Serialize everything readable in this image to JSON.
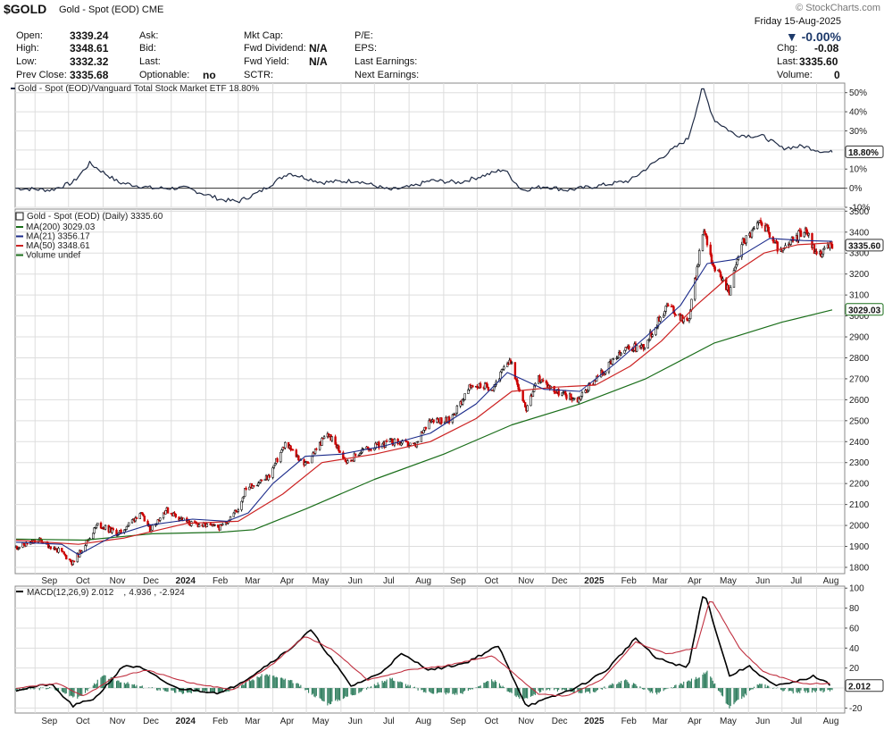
{
  "header": {
    "symbol": "$GOLD",
    "description": "Gold - Spot (EOD) CME",
    "site": "© StockCharts.com",
    "date": "Friday 15-Aug-2025",
    "change_pct": "▼ -0.00%",
    "rows": [
      {
        "l1": "Open:",
        "v1": "3339.24",
        "l2": "Ask:",
        "v2": "",
        "l3": "Mkt Cap:",
        "v3": "",
        "l4": "P/E:",
        "v4": "",
        "l5": "",
        "v5": ""
      },
      {
        "l1": "High:",
        "v1": "3348.61",
        "l2": "Bid:",
        "v2": "",
        "l3": "Fwd Dividend:",
        "v3": "N/A",
        "l4": "EPS:",
        "v4": "",
        "l5": "Chg:",
        "v5": "-0.08"
      },
      {
        "l1": "Low:",
        "v1": "3332.32",
        "l2": "Last:",
        "v2": "",
        "l3": "Fwd Yield:",
        "v3": "N/A",
        "l4": "Last Earnings:",
        "v4": "",
        "l5": "Last:",
        "v5": "3335.60"
      },
      {
        "l1": "Prev Close:",
        "v1": "3335.68",
        "l2": "Optionable:",
        "v2": "no",
        "l3": "SCTR:",
        "v3": "",
        "l4": "Next Earnings:",
        "v4": "",
        "l5": "Volume:",
        "v5": "0"
      }
    ]
  },
  "colors": {
    "price_up": "#111111",
    "price_down": "#cc0000",
    "ma200": "#1a6e1a",
    "ma21": "#1a2a8a",
    "ma50": "#cc2222",
    "ratio": "#1e2a44",
    "macd": "#000000",
    "signal": "#c03040",
    "histogram": "#2a7a5a",
    "grid": "#dddddd"
  },
  "chart_data": [
    {
      "type": "line",
      "title": "Gold - Spot (EOD)/Vanguard Total Stock Market ETF 18.80%",
      "y_ticks": [
        "50%",
        "40%",
        "30%",
        "20%",
        "10%",
        "0%",
        "-10%"
      ],
      "ylim": [
        -10,
        55
      ],
      "last_label": "18.80%",
      "series": [
        {
          "name": "Gold/VTI relative %",
          "x": [
            "2023-08-15",
            "2023-09-15",
            "2023-10-05",
            "2023-10-20",
            "2023-11-15",
            "2023-12-15",
            "2024-01-15",
            "2024-02-15",
            "2024-03-01",
            "2024-03-20",
            "2024-04-15",
            "2024-05-15",
            "2024-06-15",
            "2024-07-15",
            "2024-08-05",
            "2024-08-20",
            "2024-09-15",
            "2024-10-15",
            "2024-10-25",
            "2024-11-10",
            "2024-12-01",
            "2024-12-20",
            "2025-01-15",
            "2025-02-15",
            "2025-03-10",
            "2025-04-08",
            "2025-04-21",
            "2025-05-01",
            "2025-05-20",
            "2025-06-15",
            "2025-07-01",
            "2025-07-20",
            "2025-08-08",
            "2025-08-15"
          ],
          "y": [
            0,
            -1,
            3,
            13,
            3,
            0,
            0,
            -6,
            -7,
            -2,
            8,
            3,
            4,
            -1,
            1,
            4,
            3,
            8,
            10,
            -1,
            1,
            -1,
            1,
            4,
            14,
            26,
            53,
            36,
            28,
            27,
            21,
            22,
            19,
            18.8
          ]
        }
      ]
    },
    {
      "type": "candlestick",
      "title": "Gold - Spot (EOD) (Daily) 3335.60",
      "legend": [
        "MA(200) 3029.03",
        "MA(21) 3356.17",
        "MA(50) 3348.61",
        "Volume undef"
      ],
      "y_ticks": [
        "3500",
        "3400",
        "3300",
        "3200",
        "3100",
        "3000",
        "2900",
        "2800",
        "2700",
        "2600",
        "2500",
        "2400",
        "2300",
        "2200",
        "2100",
        "2000",
        "1900",
        "1800"
      ],
      "ylim": [
        1770,
        3510
      ],
      "last_label": "3335.60",
      "ma200_label": "3029.03",
      "x_labels": [
        "Sep",
        "Oct",
        "Nov",
        "Dec",
        "2024",
        "Feb",
        "Mar",
        "Apr",
        "May",
        "Jun",
        "Jul",
        "Aug",
        "Sep",
        "Oct",
        "Nov",
        "Dec",
        "2025",
        "Feb",
        "Mar",
        "Apr",
        "May",
        "Jun",
        "Jul",
        "Aug"
      ],
      "price_path": {
        "x": [
          "2023-08-15",
          "2023-09-05",
          "2023-09-25",
          "2023-10-05",
          "2023-10-27",
          "2023-11-15",
          "2023-12-04",
          "2023-12-13",
          "2023-12-27",
          "2024-01-17",
          "2024-02-14",
          "2024-03-01",
          "2024-03-08",
          "2024-03-28",
          "2024-04-12",
          "2024-04-30",
          "2024-05-20",
          "2024-06-07",
          "2024-06-20",
          "2024-07-17",
          "2024-08-07",
          "2024-08-20",
          "2024-09-06",
          "2024-09-26",
          "2024-10-15",
          "2024-10-30",
          "2024-11-14",
          "2024-11-25",
          "2024-12-11",
          "2024-12-30",
          "2025-01-15",
          "2025-02-11",
          "2025-02-28",
          "2025-03-20",
          "2025-04-08",
          "2025-04-22",
          "2025-05-01",
          "2025-05-15",
          "2025-05-26",
          "2025-06-13",
          "2025-06-30",
          "2025-07-22",
          "2025-08-01",
          "2025-08-15"
        ],
        "y": [
          1895,
          1930,
          1870,
          1820,
          2005,
          1960,
          2060,
          1980,
          2075,
          2010,
          1990,
          2080,
          2180,
          2230,
          2390,
          2290,
          2440,
          2300,
          2360,
          2400,
          2380,
          2510,
          2500,
          2670,
          2660,
          2790,
          2560,
          2700,
          2640,
          2600,
          2700,
          2840,
          2860,
          3050,
          2970,
          3420,
          3230,
          3120,
          3350,
          3450,
          3300,
          3420,
          3290,
          3335.6
        ]
      },
      "ma21": {
        "x": [
          "2023-08-15",
          "2023-09-25",
          "2023-10-10",
          "2023-11-10",
          "2023-12-10",
          "2024-01-20",
          "2024-02-20",
          "2024-03-10",
          "2024-04-01",
          "2024-04-30",
          "2024-06-01",
          "2024-07-10",
          "2024-08-20",
          "2024-09-30",
          "2024-10-28",
          "2024-11-30",
          "2025-01-01",
          "2025-02-01",
          "2025-03-01",
          "2025-04-01",
          "2025-04-25",
          "2025-05-20",
          "2025-06-20",
          "2025-07-20",
          "2025-08-15"
        ],
        "y": [
          1920,
          1910,
          1860,
          1950,
          2000,
          2030,
          2020,
          2060,
          2200,
          2330,
          2340,
          2380,
          2440,
          2580,
          2730,
          2650,
          2640,
          2770,
          2900,
          3050,
          3250,
          3270,
          3370,
          3360,
          3356.17
        ]
      },
      "ma50": {
        "x": [
          "2023-08-15",
          "2023-10-10",
          "2023-11-20",
          "2024-01-15",
          "2024-03-01",
          "2024-04-10",
          "2024-05-15",
          "2024-07-01",
          "2024-08-20",
          "2024-09-30",
          "2024-11-01",
          "2024-12-10",
          "2025-01-15",
          "2025-02-15",
          "2025-03-15",
          "2025-04-15",
          "2025-05-15",
          "2025-06-15",
          "2025-07-15",
          "2025-08-15"
        ],
        "y": [
          1930,
          1910,
          1940,
          2010,
          2020,
          2150,
          2300,
          2340,
          2400,
          2510,
          2640,
          2660,
          2670,
          2760,
          2880,
          3050,
          3190,
          3300,
          3340,
          3348.61
        ]
      },
      "ma200": {
        "x": [
          "2023-08-15",
          "2023-10-15",
          "2023-12-15",
          "2024-02-15",
          "2024-03-15",
          "2024-05-01",
          "2024-07-01",
          "2024-09-01",
          "2024-11-01",
          "2025-01-01",
          "2025-03-01",
          "2025-05-01",
          "2025-07-01",
          "2025-08-15"
        ],
        "y": [
          1935,
          1930,
          1960,
          1968,
          1980,
          2080,
          2220,
          2340,
          2480,
          2580,
          2700,
          2870,
          2970,
          3029.03
        ]
      }
    },
    {
      "type": "line",
      "title": "MACD(12,26,9) 2.012, 4.936, -2.924",
      "legend_parts": [
        "MACD(12,26,9) 2.012",
        "4.936",
        "-2.924"
      ],
      "y_ticks": [
        "100",
        "80",
        "60",
        "40",
        "20",
        "0",
        "-20"
      ],
      "ylim": [
        -25,
        102
      ],
      "last_label": "2.012",
      "x_labels": [
        "Sep",
        "Oct",
        "Nov",
        "Dec",
        "2024",
        "Feb",
        "Mar",
        "Apr",
        "May",
        "Jun",
        "Jul",
        "Aug",
        "Sep",
        "Oct",
        "Nov",
        "Dec",
        "2025",
        "Feb",
        "Mar",
        "Apr",
        "May",
        "Jun",
        "Jul",
        "Aug"
      ],
      "series": [
        {
          "name": "MACD",
          "x": [
            "2023-08-15",
            "2023-09-15",
            "2023-10-05",
            "2023-10-25",
            "2023-11-20",
            "2023-12-05",
            "2024-01-05",
            "2024-02-15",
            "2024-03-10",
            "2024-04-15",
            "2024-05-05",
            "2024-06-10",
            "2024-07-05",
            "2024-07-25",
            "2024-08-20",
            "2024-09-20",
            "2024-10-20",
            "2024-11-14",
            "2024-12-05",
            "2025-01-01",
            "2025-01-25",
            "2025-02-20",
            "2025-03-10",
            "2025-04-08",
            "2025-04-22",
            "2025-05-15",
            "2025-06-01",
            "2025-06-25",
            "2025-07-10",
            "2025-07-30",
            "2025-08-15"
          ],
          "y": [
            -2,
            4,
            -18,
            -10,
            23,
            20,
            0,
            -5,
            10,
            38,
            58,
            2,
            14,
            34,
            18,
            25,
            42,
            -18,
            -10,
            2,
            18,
            50,
            30,
            20,
            98,
            12,
            22,
            2,
            5,
            12,
            2.012
          ]
        },
        {
          "name": "Signal",
          "x": [
            "2023-08-15",
            "2023-09-20",
            "2023-10-15",
            "2023-11-10",
            "2023-12-10",
            "2024-01-15",
            "2024-02-25",
            "2024-04-01",
            "2024-04-30",
            "2024-05-25",
            "2024-06-25",
            "2024-07-30",
            "2024-09-01",
            "2024-10-15",
            "2024-11-25",
            "2024-12-20",
            "2025-01-20",
            "2025-02-20",
            "2025-03-20",
            "2025-04-15",
            "2025-04-28",
            "2025-05-25",
            "2025-06-15",
            "2025-07-20",
            "2025-08-15"
          ],
          "y": [
            0,
            5,
            -8,
            10,
            18,
            6,
            -2,
            24,
            52,
            38,
            8,
            18,
            22,
            32,
            -6,
            -8,
            8,
            46,
            34,
            40,
            90,
            38,
            16,
            4,
            4.936
          ]
        }
      ],
      "histogram": {
        "x": [
          "2023-08-15",
          "2023-09-15",
          "2023-10-10",
          "2023-11-01",
          "2023-12-01",
          "2024-01-10",
          "2024-02-20",
          "2024-03-25",
          "2024-04-20",
          "2024-05-20",
          "2024-06-15",
          "2024-07-15",
          "2024-08-15",
          "2024-09-15",
          "2024-10-15",
          "2024-11-10",
          "2024-12-01",
          "2025-01-10",
          "2025-02-10",
          "2025-03-10",
          "2025-04-15",
          "2025-04-25",
          "2025-05-15",
          "2025-06-10",
          "2025-07-10",
          "2025-08-15"
        ],
        "y": [
          -2,
          0,
          -10,
          12,
          2,
          -5,
          -3,
          14,
          6,
          -16,
          -5,
          10,
          -4,
          -6,
          8,
          -12,
          -1,
          -5,
          8,
          -6,
          10,
          16,
          -20,
          4,
          -4,
          -2.924
        ]
      }
    }
  ]
}
